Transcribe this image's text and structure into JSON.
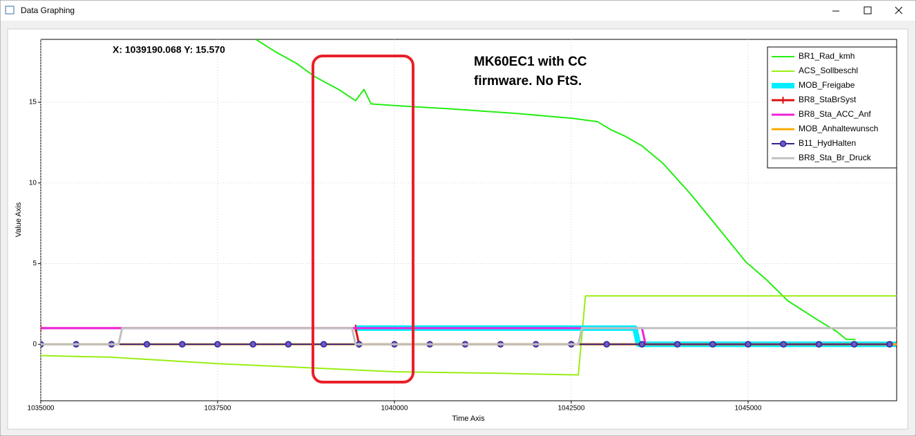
{
  "window": {
    "title": "Data Graphing"
  },
  "chart_data": {
    "type": "line",
    "x_label": "Time Axis",
    "y_label": "Value Axis",
    "annotations": [
      "X: 1039190.068 Y: 15.570",
      "MK60EC1 with CC",
      "firmware. No FtS."
    ],
    "xlim": [
      1035000,
      1047100
    ],
    "ylim": [
      -3.5,
      18.9
    ],
    "xticks": [
      1035000,
      1037500,
      1040000,
      1042500,
      1045000
    ],
    "yticks": [
      0,
      5,
      10,
      15
    ],
    "grid": true,
    "legend": "upper right",
    "series": [
      {
        "name": "BR1_Rad_kmh",
        "color": "#22ee11",
        "x": [
          1038040,
          1038330,
          1038620,
          1038870,
          1039210,
          1039450,
          1039570,
          1039670,
          1040000,
          1040770,
          1041750,
          1042530,
          1042870,
          1043060,
          1043260,
          1043500,
          1043800,
          1044190,
          1044580,
          1044970,
          1045260,
          1045560,
          1045950,
          1046250,
          1046390,
          1046520
        ],
        "values": [
          18.9,
          18.1,
          17.4,
          16.6,
          15.8,
          15.1,
          15.8,
          14.9,
          14.8,
          14.6,
          14.3,
          14.0,
          13.8,
          13.3,
          12.9,
          12.3,
          11.2,
          9.3,
          7.2,
          5.1,
          4.0,
          2.7,
          1.6,
          0.8,
          0.3,
          0.3
        ]
      },
      {
        "name": "ACS_Sollbeschl",
        "color": "#99ee11",
        "x": [
          1035000,
          1036000,
          1037500,
          1039000,
          1040000,
          1041500,
          1042600,
          1042700,
          1047100
        ],
        "values": [
          -0.7,
          -0.8,
          -1.2,
          -1.5,
          -1.7,
          -1.8,
          -1.9,
          3,
          3
        ]
      },
      {
        "name": "MOB_Freigabe",
        "color": "#00eeff",
        "x": [
          1039450,
          1043400,
          1043450,
          1047100
        ],
        "values": [
          1,
          1,
          0,
          0
        ]
      },
      {
        "name": "BR8_StaBrSyst",
        "color": "#dd1111",
        "marker": "plus",
        "x": [
          1035000,
          1039450,
          1039500,
          1047100
        ],
        "values": [
          1,
          1,
          0,
          0
        ]
      },
      {
        "name": "BR8_Sta_ACC_Anf",
        "color": "#ee22dd",
        "x": [
          1035000,
          1043500,
          1043550,
          1047100
        ],
        "values": [
          1,
          1,
          0,
          0
        ]
      },
      {
        "name": "MOB_Anhaltewunsch",
        "color": "#ffaa00",
        "x": [
          1035000,
          1047100
        ],
        "values": [
          0,
          0
        ]
      },
      {
        "name": "B11_HydHalten",
        "color": "#332288",
        "marker": "circle",
        "x": [
          1035000,
          1035500,
          1036000,
          1036500,
          1037000,
          1037500,
          1038000,
          1038500,
          1039000,
          1039500,
          1040000,
          1040500,
          1041000,
          1041500,
          1042000,
          1042500,
          1043000,
          1043500,
          1044000,
          1044500,
          1045000,
          1045500,
          1046000,
          1046500,
          1047000
        ],
        "values": [
          0,
          0,
          0,
          0,
          0,
          0,
          0,
          0,
          0,
          0,
          0,
          0,
          0,
          0,
          0,
          0,
          0,
          0,
          0,
          0,
          0,
          0,
          0,
          0,
          0
        ]
      },
      {
        "name": "BR8_Sta_Br_Druck",
        "color": "#c0c0c0",
        "x": [
          1035000,
          1036100,
          1036150,
          1039400,
          1039450,
          1042600,
          1042650,
          1047100
        ],
        "values": [
          0,
          0,
          1,
          1,
          0,
          0,
          1,
          1
        ]
      }
    ]
  }
}
